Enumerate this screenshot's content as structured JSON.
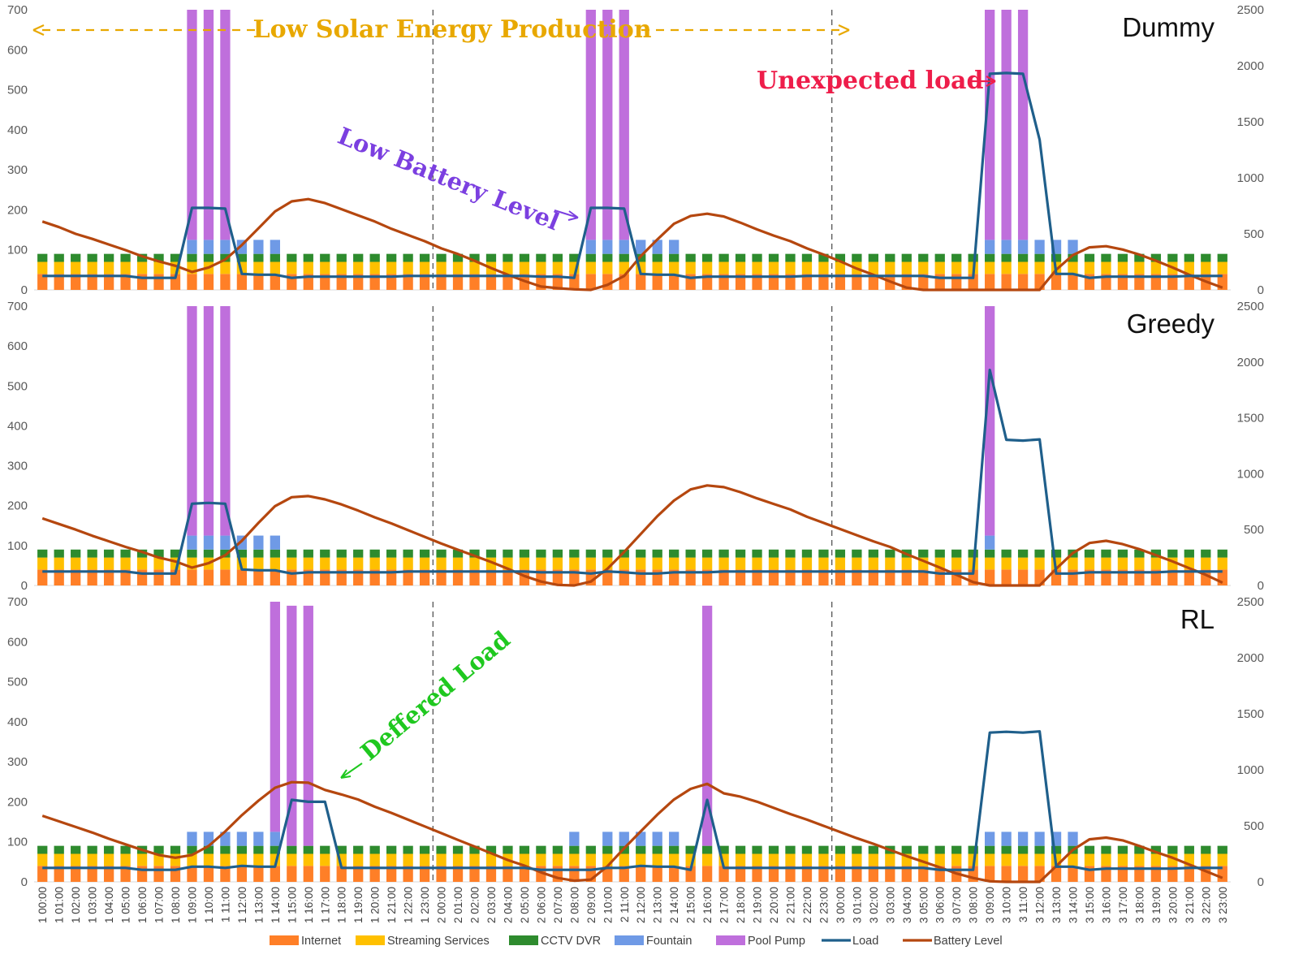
{
  "chart_data": {
    "type": "bar",
    "x": [
      "1 00:00",
      "1 01:00",
      "1 02:00",
      "1 03:00",
      "1 04:00",
      "1 05:00",
      "1 06:00",
      "1 07:00",
      "1 08:00",
      "1 09:00",
      "1 10:00",
      "1 11:00",
      "1 12:00",
      "1 13:00",
      "1 14:00",
      "1 15:00",
      "1 16:00",
      "1 17:00",
      "1 18:00",
      "1 19:00",
      "1 20:00",
      "1 21:00",
      "1 22:00",
      "1 23:00",
      "2 00:00",
      "2 01:00",
      "2 02:00",
      "2 03:00",
      "2 04:00",
      "2 05:00",
      "2 06:00",
      "2 07:00",
      "2 08:00",
      "2 09:00",
      "2 10:00",
      "2 11:00",
      "2 12:00",
      "2 13:00",
      "2 14:00",
      "2 15:00",
      "2 16:00",
      "2 17:00",
      "2 18:00",
      "2 19:00",
      "2 20:00",
      "2 21:00",
      "2 22:00",
      "2 23:00",
      "3 00:00",
      "3 01:00",
      "3 02:00",
      "3 03:00",
      "3 04:00",
      "3 05:00",
      "3 06:00",
      "3 07:00",
      "3 08:00",
      "3 09:00",
      "3 10:00",
      "3 11:00",
      "3 12:00",
      "3 13:00",
      "3 14:00",
      "3 15:00",
      "3 16:00",
      "3 17:00",
      "3 18:00",
      "3 19:00",
      "3 20:00",
      "3 21:00",
      "3 22:00",
      "3 23:00"
    ],
    "y_left": {
      "min": 0,
      "max": 700,
      "ticks": [
        0,
        100,
        200,
        300,
        400,
        500,
        600,
        700
      ]
    },
    "y_right": {
      "min": 0,
      "max": 2500,
      "ticks": [
        0,
        500,
        1000,
        1500,
        2000,
        2500
      ]
    },
    "stacked": true,
    "legend_position": "bottom",
    "legend": [
      {
        "name": "Internet",
        "kind": "bar",
        "color": "#ff7f27"
      },
      {
        "name": "Streaming Services",
        "kind": "bar",
        "color": "#ffc000"
      },
      {
        "name": "CCTV DVR",
        "kind": "bar",
        "color": "#2e8b2e"
      },
      {
        "name": "Fountain",
        "kind": "bar",
        "color": "#6f9ae6"
      },
      {
        "name": "Pool Pump",
        "kind": "bar",
        "color": "#bf6fdc"
      },
      {
        "name": "Load",
        "kind": "line",
        "color": "#1f5f8b"
      },
      {
        "name": "Battery Level",
        "kind": "line",
        "color": "#b5470f"
      }
    ],
    "base": {
      "internet": 40,
      "streaming": 30,
      "cctv": 20
    },
    "panels": [
      {
        "title": "Dummy",
        "fountain_hours": [
          9,
          10,
          11,
          12,
          13,
          14,
          33,
          34,
          35,
          36,
          37,
          38,
          57,
          58,
          59,
          60,
          61,
          62
        ],
        "pool_pump": [
          {
            "hour": 9,
            "top": 700
          },
          {
            "hour": 10,
            "top": 700
          },
          {
            "hour": 11,
            "top": 700
          },
          {
            "hour": 33,
            "top": 700
          },
          {
            "hour": 34,
            "top": 700
          },
          {
            "hour": 35,
            "top": 700
          },
          {
            "hour": 57,
            "top": 700
          },
          {
            "hour": 58,
            "top": 700
          },
          {
            "hour": 59,
            "top": 700
          }
        ],
        "load": [
          35,
          35,
          35,
          35,
          35,
          35,
          30,
          30,
          30,
          205,
          205,
          203,
          40,
          38,
          38,
          30,
          33,
          33,
          33,
          33,
          33,
          33,
          35,
          35,
          35,
          35,
          35,
          35,
          35,
          35,
          33,
          33,
          30,
          205,
          205,
          203,
          40,
          38,
          38,
          30,
          33,
          33,
          33,
          33,
          33,
          33,
          35,
          35,
          35,
          35,
          35,
          35,
          35,
          35,
          30,
          30,
          30,
          540,
          542,
          540,
          375,
          40,
          40,
          30,
          33,
          33,
          33,
          33,
          33,
          35,
          35,
          35
        ],
        "battery": [
          610,
          560,
          500,
          455,
          405,
          355,
          300,
          255,
          215,
          160,
          200,
          270,
          400,
          550,
          700,
          790,
          810,
          775,
          720,
          665,
          610,
          545,
          490,
          435,
          370,
          320,
          260,
          195,
          135,
          80,
          30,
          15,
          5,
          0,
          45,
          125,
          300,
          450,
          590,
          660,
          680,
          655,
          600,
          540,
          485,
          435,
          370,
          315,
          255,
          190,
          135,
          75,
          20,
          0,
          0,
          0,
          0,
          0,
          0,
          0,
          0,
          180,
          310,
          380,
          390,
          360,
          315,
          260,
          200,
          135,
          75,
          20
        ]
      },
      {
        "title": "Greedy",
        "fountain_hours": [
          9,
          10,
          11,
          12,
          13,
          14,
          57
        ],
        "pool_pump": [
          {
            "hour": 9,
            "top": 700
          },
          {
            "hour": 10,
            "top": 700
          },
          {
            "hour": 11,
            "top": 700
          },
          {
            "hour": 57,
            "top": 700
          }
        ],
        "load": [
          35,
          35,
          35,
          35,
          35,
          35,
          30,
          30,
          30,
          205,
          207,
          205,
          40,
          38,
          38,
          30,
          33,
          33,
          33,
          33,
          33,
          33,
          35,
          35,
          35,
          35,
          35,
          35,
          35,
          35,
          33,
          33,
          33,
          30,
          35,
          33,
          30,
          30,
          33,
          33,
          33,
          35,
          35,
          35,
          35,
          35,
          35,
          35,
          35,
          35,
          35,
          35,
          35,
          35,
          30,
          30,
          30,
          540,
          365,
          363,
          366,
          30,
          30,
          33,
          33,
          33,
          33,
          33,
          35,
          35,
          35,
          35
        ],
        "battery": [
          600,
          550,
          500,
          445,
          395,
          345,
          300,
          250,
          215,
          160,
          200,
          270,
          400,
          560,
          710,
          790,
          800,
          770,
          725,
          670,
          610,
          555,
          495,
          435,
          375,
          320,
          265,
          210,
          150,
          85,
          35,
          5,
          0,
          35,
          150,
          300,
          460,
          620,
          760,
          860,
          895,
          880,
          835,
          780,
          730,
          680,
          615,
          560,
          505,
          450,
          395,
          345,
          280,
          220,
          160,
          95,
          30,
          0,
          0,
          0,
          0,
          150,
          290,
          380,
          400,
          370,
          325,
          270,
          215,
          155,
          95,
          25
        ]
      },
      {
        "title": "RL",
        "fountain_hours": [
          9,
          10,
          11,
          12,
          13,
          14,
          32,
          34,
          35,
          36,
          37,
          38,
          57,
          58,
          59,
          60,
          61,
          62
        ],
        "pool_pump": [
          {
            "hour": 14,
            "top": 700
          },
          {
            "hour": 15,
            "top": 690
          },
          {
            "hour": 16,
            "top": 690
          },
          {
            "hour": 40,
            "top": 690
          }
        ],
        "load": [
          35,
          35,
          35,
          35,
          35,
          35,
          30,
          30,
          30,
          38,
          38,
          35,
          40,
          38,
          38,
          205,
          200,
          200,
          35,
          35,
          35,
          35,
          35,
          35,
          35,
          35,
          35,
          35,
          35,
          35,
          30,
          30,
          30,
          30,
          35,
          35,
          40,
          38,
          38,
          30,
          205,
          35,
          35,
          35,
          35,
          35,
          35,
          35,
          35,
          35,
          35,
          35,
          35,
          35,
          30,
          30,
          30,
          373,
          375,
          373,
          376,
          38,
          38,
          30,
          33,
          33,
          33,
          33,
          33,
          35,
          35,
          35
        ],
        "battery": [
          590,
          540,
          490,
          440,
          385,
          335,
          285,
          240,
          215,
          240,
          320,
          450,
          595,
          725,
          840,
          890,
          885,
          820,
          780,
          735,
          670,
          615,
          555,
          495,
          435,
          375,
          315,
          255,
          195,
          145,
          85,
          35,
          10,
          20,
          140,
          300,
          450,
          600,
          735,
          830,
          875,
          790,
          760,
          715,
          660,
          605,
          555,
          500,
          445,
          390,
          340,
          285,
          230,
          180,
          130,
          75,
          35,
          5,
          0,
          0,
          0,
          140,
          285,
          380,
          395,
          370,
          320,
          265,
          215,
          155,
          95,
          35
        ]
      }
    ],
    "annotations": [
      {
        "text": "Low Solar Energy Production",
        "color": "#e8a800"
      },
      {
        "text": "Low Battery Level",
        "color": "#7b3fe0"
      },
      {
        "text": "Unexpected load",
        "color": "#ee1d4a"
      },
      {
        "text": "Deffered Load",
        "color": "#1fc81f"
      }
    ]
  }
}
